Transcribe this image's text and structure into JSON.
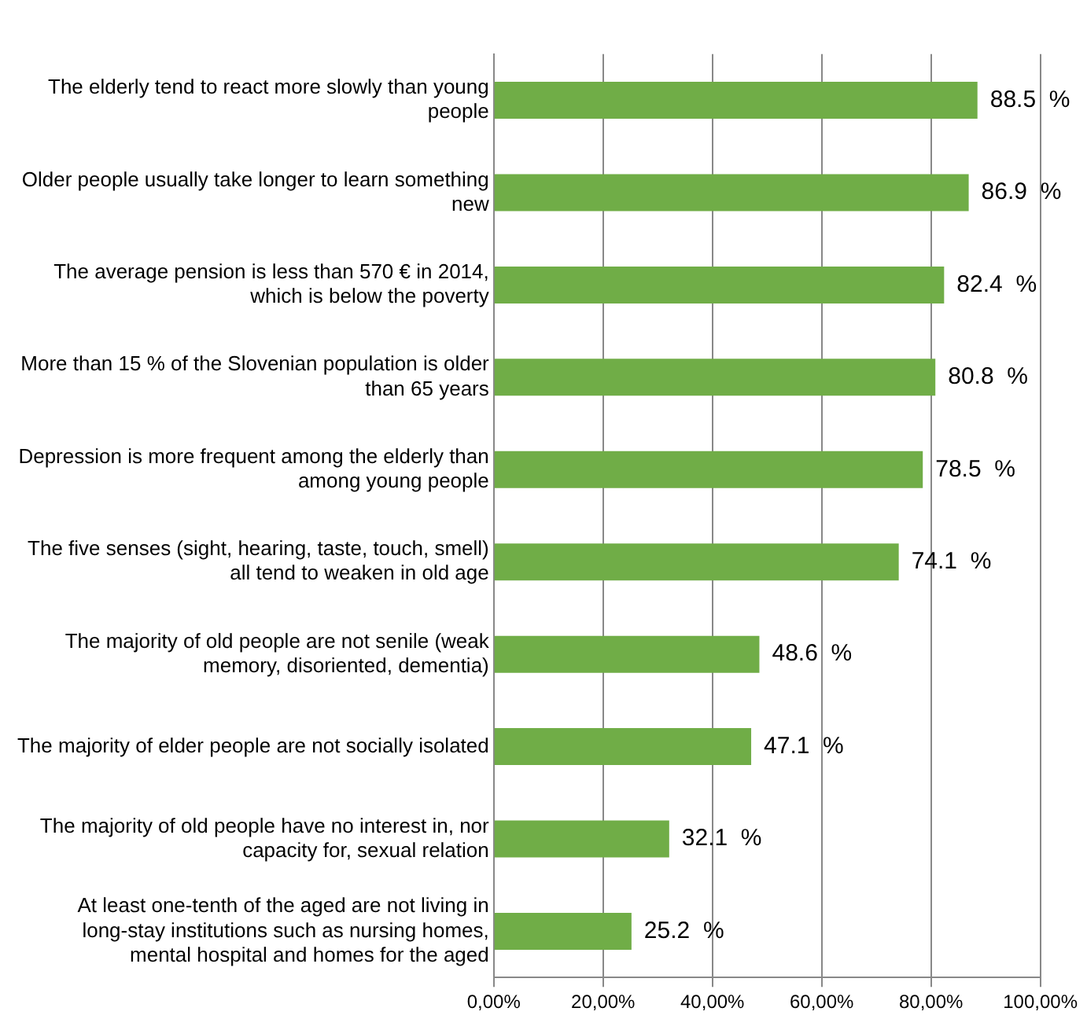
{
  "chart_data": {
    "type": "bar",
    "orientation": "horizontal",
    "categories": [
      "The elderly tend to react more slowly than young people",
      "Older people usually take longer to learn something new",
      "The average pension is less than 570 € in 2014, which is below the poverty",
      "More than 15 % of the Slovenian population is older than 65 years",
      "Depression is more frequent among the elderly than among young people",
      "The five senses (sight, hearing, taste, touch, smell) all tend to weaken in old age",
      "The majority of old people are not senile (weak memory, disoriented, dementia)",
      "The majority of elder people are not socially isolated",
      "The majority of old people have no interest in, nor capacity for, sexual relation",
      "At least one-tenth of the aged are not living in long-stay institutions such as nursing homes, mental hospital and homes for the aged"
    ],
    "values": [
      88.5,
      86.9,
      82.4,
      80.8,
      78.5,
      74.1,
      48.6,
      47.1,
      32.1,
      25.2
    ],
    "value_labels": [
      "88.5  %",
      "86.9  %",
      "82.4  %",
      "80.8  %",
      "78.5  %",
      "74.1  %",
      "48.6  %",
      "47.1  %",
      "32.1  %",
      "25.2  %"
    ],
    "color": "#70ad47",
    "xlim": [
      0,
      100
    ],
    "xticks": [
      {
        "value": 0,
        "label": "0,00%"
      },
      {
        "value": 20,
        "label": "20,00%"
      },
      {
        "value": 40,
        "label": "40,00%"
      },
      {
        "value": 60,
        "label": "60,00%"
      },
      {
        "value": 80,
        "label": "80,00%"
      },
      {
        "value": 100,
        "label": "100,00%"
      }
    ],
    "grid": "x",
    "legend": false
  }
}
